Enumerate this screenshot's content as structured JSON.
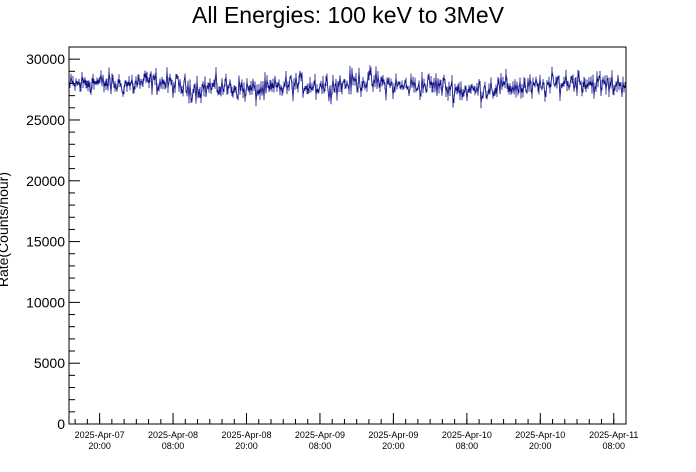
{
  "chart_data": {
    "type": "line",
    "title": "All Energies:  100 keV to 3MeV",
    "xlabel": "",
    "ylabel": "Rate(Counts/hour)",
    "ylim": [
      0,
      31000
    ],
    "xlim": [
      "2025-Apr-07 15:00",
      "2025-Apr-11 10:00"
    ],
    "y_ticks": [
      0,
      5000,
      10000,
      15000,
      20000,
      25000,
      30000
    ],
    "x_ticks": [
      {
        "date": "2025-Apr-07",
        "time": "20:00"
      },
      {
        "date": "2025-Apr-08",
        "time": "08:00"
      },
      {
        "date": "2025-Apr-08",
        "time": "20:00"
      },
      {
        "date": "2025-Apr-09",
        "time": "08:00"
      },
      {
        "date": "2025-Apr-09",
        "time": "20:00"
      },
      {
        "date": "2025-Apr-10",
        "time": "08:00"
      },
      {
        "date": "2025-Apr-10",
        "time": "20:00"
      },
      {
        "date": "2025-Apr-11",
        "time": "08:00"
      }
    ],
    "grid": false,
    "legend": "none",
    "series_color": "#000080",
    "series": [
      {
        "mean_rate": 27800,
        "typical_min": 26500,
        "typical_max": 29300
      }
    ]
  }
}
